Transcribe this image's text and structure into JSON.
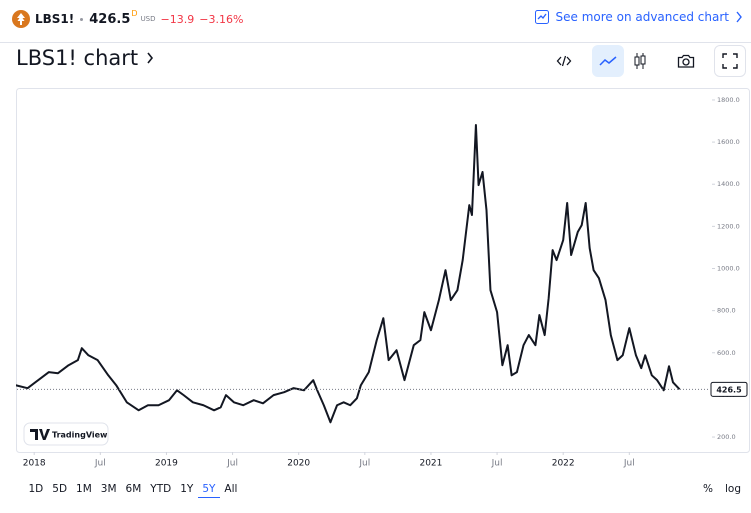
{
  "header": {
    "symbol": "LBS1!",
    "price_suffix": "D",
    "currency": "USD",
    "change": "−13.9",
    "change_pct": "−3.16%",
    "advanced_link": "See more on advanced chart"
  },
  "title": "LBS1! chart",
  "ranges": [
    "1D",
    "5D",
    "1M",
    "3M",
    "6M",
    "YTD",
    "1Y",
    "5Y",
    "All"
  ],
  "selected_range": "5Y",
  "scale_buttons": [
    "%",
    "log"
  ],
  "brand": "TradingView",
  "chart_data": {
    "type": "line",
    "grid": false,
    "xlim": [
      2017.87,
      2023.11
    ],
    "ylim": [
      129,
      1852
    ],
    "xticks": [
      {
        "value": 2018,
        "label": "2018"
      },
      {
        "value": 2018.5,
        "label": "Jul"
      },
      {
        "value": 2019,
        "label": "2019"
      },
      {
        "value": 2019.5,
        "label": "Jul"
      },
      {
        "value": 2020,
        "label": "2020"
      },
      {
        "value": 2020.5,
        "label": "Jul"
      },
      {
        "value": 2021,
        "label": "2021"
      },
      {
        "value": 2021.5,
        "label": "Jul"
      },
      {
        "value": 2022,
        "label": "2022"
      },
      {
        "value": 2022.5,
        "label": "Jul"
      }
    ],
    "yticks": [
      {
        "value": 200,
        "label": "200.0"
      },
      {
        "value": 400,
        "label": "400.0"
      },
      {
        "value": 600,
        "label": "600.0"
      },
      {
        "value": 800,
        "label": "800.0"
      },
      {
        "value": 1000,
        "label": "1000.0"
      },
      {
        "value": 1200,
        "label": "1200.0"
      },
      {
        "value": 1400,
        "label": "1400.0"
      },
      {
        "value": 1600,
        "label": "1600.0"
      },
      {
        "value": 1800,
        "label": "1800.0"
      }
    ],
    "series": [
      {
        "color": "#131722",
        "x": [
          2017.86,
          2017.95,
          2018.03,
          2018.11,
          2018.18,
          2018.26,
          2018.33,
          2018.36,
          2018.41,
          2018.48,
          2018.56,
          2018.62,
          2018.7,
          2018.79,
          2018.86,
          2018.94,
          2019.02,
          2019.08,
          2019.13,
          2019.2,
          2019.28,
          2019.36,
          2019.41,
          2019.45,
          2019.51,
          2019.58,
          2019.66,
          2019.73,
          2019.81,
          2019.89,
          2019.96,
          2020.04,
          2020.11,
          2020.14,
          2020.19,
          2020.24,
          2020.29,
          2020.34,
          2020.39,
          2020.44,
          2020.47,
          2020.53,
          2020.59,
          2020.64,
          2020.68,
          2020.74,
          2020.8,
          2020.87,
          2020.92,
          2020.95,
          2021.0,
          2021.06,
          2021.11,
          2021.15,
          2021.2,
          2021.24,
          2021.29,
          2021.31,
          2021.34,
          2021.36,
          2021.39,
          2021.42,
          2021.45,
          2021.5,
          2021.54,
          2021.58,
          2021.61,
          2021.65,
          2021.7,
          2021.74,
          2021.79,
          2021.82,
          2021.86,
          2021.89,
          2021.92,
          2021.95,
          2022.0,
          2022.03,
          2022.06,
          2022.11,
          2022.14,
          2022.17,
          2022.2,
          2022.23,
          2022.27,
          2022.32,
          2022.36,
          2022.41,
          2022.45,
          2022.5,
          2022.55,
          2022.59,
          2022.62,
          2022.67,
          2022.71,
          2022.76,
          2022.8,
          2022.83,
          2022.88
        ],
        "values": [
          446,
          432,
          470,
          508,
          503,
          541,
          565,
          622,
          588,
          565,
          493,
          446,
          365,
          327,
          351,
          351,
          375,
          422,
          399,
          365,
          351,
          327,
          341,
          399,
          365,
          351,
          375,
          360,
          399,
          413,
          432,
          422,
          470,
          422,
          351,
          270,
          351,
          365,
          351,
          384,
          446,
          508,
          660,
          764,
          565,
          612,
          470,
          636,
          660,
          793,
          707,
          850,
          992,
          850,
          897,
          1040,
          1301,
          1254,
          1681,
          1396,
          1458,
          1277,
          897,
          793,
          541,
          636,
          493,
          508,
          636,
          684,
          636,
          779,
          684,
          859,
          1087,
          1040,
          1135,
          1311,
          1064,
          1173,
          1206,
          1311,
          1097,
          992,
          954,
          850,
          684,
          565,
          588,
          717,
          588,
          527,
          588,
          493,
          470,
          422,
          536,
          460,
          426.5
        ]
      }
    ]
  }
}
